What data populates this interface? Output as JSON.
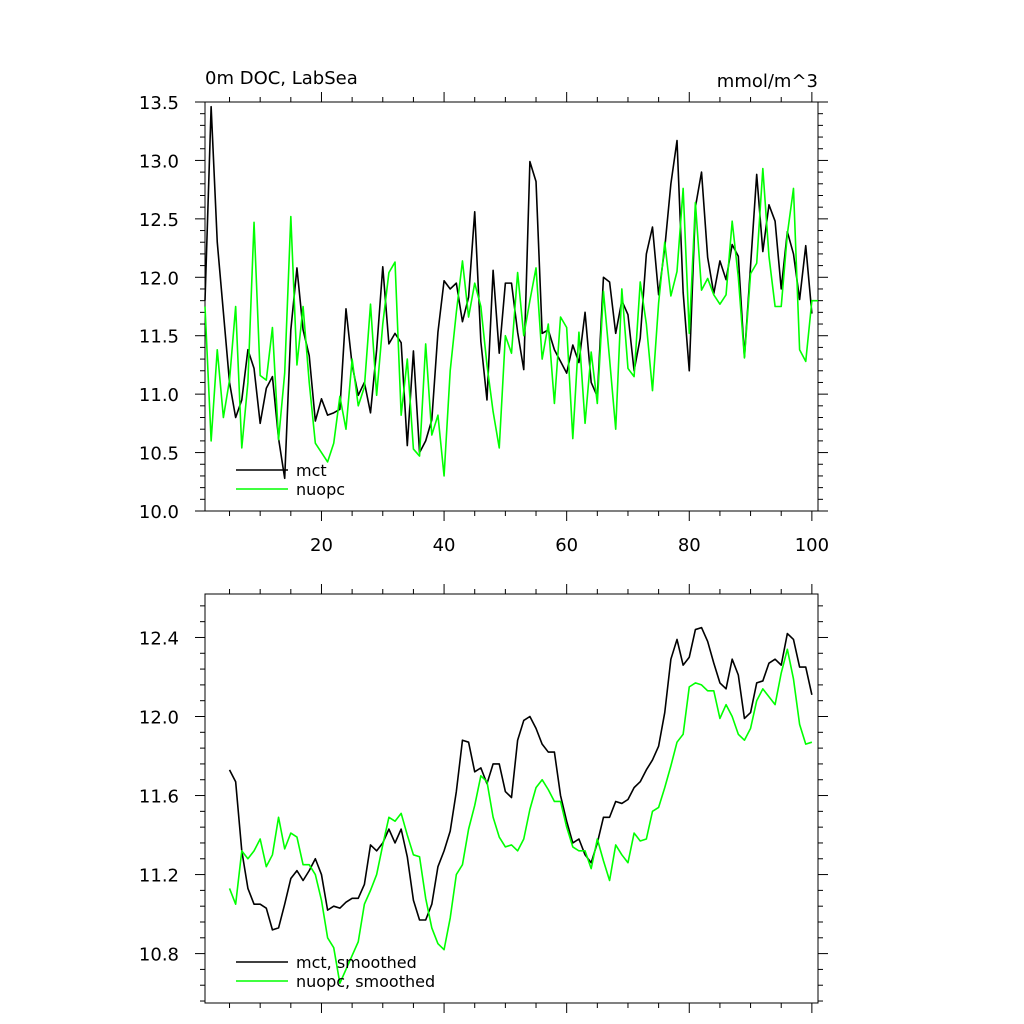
{
  "colors": {
    "mct": "#000000",
    "nuopc": "#00ff00"
  },
  "chart_data": [
    {
      "type": "line",
      "title": "0m DOC, LabSea",
      "units": "mmol/m^3",
      "xlim": [
        1,
        101
      ],
      "ylim": [
        10.0,
        13.5
      ],
      "xticks": [
        20,
        40,
        60,
        80,
        100
      ],
      "yticks": [
        10.0,
        10.5,
        11.0,
        11.5,
        12.0,
        12.5,
        13.0,
        13.5
      ],
      "xtick_labels": [
        "20",
        "40",
        "60",
        "80",
        "100"
      ],
      "ytick_labels": [
        "10.0",
        "10.5",
        "11.0",
        "11.5",
        "12.0",
        "12.5",
        "13.0",
        "13.5"
      ],
      "legend": "bottom-left",
      "series": [
        {
          "name": "mct",
          "color": "#000000",
          "x_start": 1,
          "values": [
            11.8,
            13.46,
            12.3,
            11.7,
            11.1,
            10.8,
            10.95,
            11.38,
            11.22,
            10.75,
            11.05,
            11.15,
            10.62,
            10.28,
            11.55,
            12.08,
            11.55,
            11.33,
            10.77,
            10.96,
            10.82,
            10.84,
            10.87,
            11.73,
            11.25,
            10.99,
            11.1,
            10.84,
            11.38,
            12.09,
            11.43,
            11.52,
            11.44,
            10.56,
            11.37,
            10.5,
            10.6,
            10.78,
            11.53,
            11.97,
            11.9,
            11.95,
            11.62,
            11.83,
            12.56,
            11.45,
            10.95,
            12.06,
            11.35,
            11.95,
            11.95,
            11.53,
            11.21,
            12.99,
            12.82,
            11.52,
            11.55,
            11.38,
            11.28,
            11.18,
            11.42,
            11.27,
            11.7,
            11.1,
            10.98,
            12.0,
            11.96,
            11.52,
            11.8,
            11.68,
            11.2,
            11.48,
            12.2,
            12.43,
            11.85,
            12.25,
            12.8,
            13.17,
            11.87,
            11.2,
            12.6,
            12.9,
            12.17,
            11.86,
            12.14,
            11.98,
            12.28,
            12.18,
            11.32,
            12.1,
            12.88,
            12.22,
            12.62,
            12.48,
            11.9,
            12.39,
            12.2,
            11.81,
            12.27,
            11.69
          ]
        },
        {
          "name": "nuopc",
          "color": "#00ff00",
          "x_start": 1,
          "values": [
            11.75,
            10.6,
            11.38,
            10.8,
            11.12,
            11.75,
            10.54,
            11.1,
            12.47,
            11.16,
            11.12,
            11.57,
            10.61,
            11.18,
            12.52,
            11.25,
            11.75,
            11.1,
            10.58,
            10.5,
            10.42,
            10.58,
            10.98,
            10.7,
            11.3,
            10.9,
            11.06,
            11.77,
            10.99,
            11.6,
            12.04,
            12.13,
            10.82,
            11.3,
            10.53,
            10.47,
            11.43,
            10.65,
            10.82,
            10.3,
            11.2,
            11.7,
            12.14,
            11.66,
            11.95,
            11.75,
            11.25,
            10.85,
            10.54,
            11.5,
            11.35,
            12.04,
            11.5,
            11.8,
            12.08,
            11.3,
            11.6,
            10.92,
            11.66,
            11.57,
            10.62,
            11.53,
            10.75,
            11.36,
            10.92,
            11.88,
            11.3,
            10.7,
            11.9,
            11.22,
            11.15,
            11.96,
            11.6,
            11.03,
            11.78,
            12.3,
            11.84,
            12.05,
            12.76,
            11.52,
            12.64,
            11.89,
            11.99,
            11.85,
            11.77,
            11.85,
            12.48,
            12.0,
            11.31,
            12.03,
            12.12,
            12.93,
            12.18,
            11.75,
            11.75,
            12.37,
            12.76,
            11.38,
            11.28,
            11.8,
            11.8
          ]
        }
      ]
    },
    {
      "type": "line",
      "title": "",
      "units": "",
      "xlim": [
        1,
        101
      ],
      "ylim": [
        10.55,
        12.62
      ],
      "xticks": [
        20,
        40,
        60,
        80,
        100
      ],
      "yticks": [
        10.8,
        11.2,
        11.6,
        12.0,
        12.4
      ],
      "ytick_labels": [
        "10.8",
        "11.2",
        "11.6",
        "12.0",
        "12.4"
      ],
      "legend": "bottom-left",
      "series": [
        {
          "name": "mct, smoothed",
          "color": "#000000",
          "x_start": 5,
          "values": [
            11.73,
            11.67,
            11.32,
            11.13,
            11.05,
            11.05,
            11.03,
            10.92,
            10.93,
            11.05,
            11.18,
            11.22,
            11.17,
            11.22,
            11.28,
            11.2,
            11.02,
            11.04,
            11.03,
            11.06,
            11.08,
            11.08,
            11.15,
            11.35,
            11.32,
            11.36,
            11.43,
            11.36,
            11.43,
            11.29,
            11.07,
            10.97,
            10.97,
            11.05,
            11.24,
            11.32,
            11.42,
            11.62,
            11.88,
            11.87,
            11.72,
            11.74,
            11.66,
            11.76,
            11.76,
            11.62,
            11.59,
            11.88,
            11.98,
            12.0,
            11.94,
            11.86,
            11.82,
            11.82,
            11.6,
            11.47,
            11.36,
            11.38,
            11.3,
            11.26,
            11.36,
            11.49,
            11.49,
            11.57,
            11.56,
            11.58,
            11.64,
            11.67,
            11.73,
            11.78,
            11.85,
            12.02,
            12.29,
            12.39,
            12.26,
            12.3,
            12.44,
            12.45,
            12.38,
            12.27,
            12.17,
            12.14,
            12.29,
            12.21,
            11.99,
            12.02,
            12.17,
            12.18,
            12.27,
            12.29,
            12.26,
            12.42,
            12.39,
            12.25,
            12.25,
            12.11
          ]
        },
        {
          "name": "nuopc, smoothed",
          "color": "#00ff00",
          "x_start": 5,
          "values": [
            11.13,
            11.05,
            11.32,
            11.28,
            11.32,
            11.38,
            11.24,
            11.3,
            11.49,
            11.33,
            11.41,
            11.39,
            11.25,
            11.25,
            11.2,
            11.07,
            10.88,
            10.83,
            10.65,
            10.72,
            10.79,
            10.86,
            11.05,
            11.12,
            11.2,
            11.35,
            11.49,
            11.47,
            11.51,
            11.4,
            11.3,
            11.29,
            11.08,
            10.93,
            10.85,
            10.82,
            10.98,
            11.2,
            11.25,
            11.43,
            11.55,
            11.7,
            11.67,
            11.49,
            11.39,
            11.34,
            11.35,
            11.32,
            11.38,
            11.53,
            11.64,
            11.68,
            11.63,
            11.57,
            11.57,
            11.44,
            11.34,
            11.32,
            11.32,
            11.23,
            11.38,
            11.27,
            11.17,
            11.35,
            11.3,
            11.26,
            11.41,
            11.37,
            11.38,
            11.52,
            11.54,
            11.64,
            11.75,
            11.87,
            11.91,
            12.15,
            12.17,
            12.16,
            12.13,
            12.13,
            11.99,
            12.06,
            12.0,
            11.91,
            11.88,
            11.94,
            12.08,
            12.14,
            12.1,
            12.06,
            12.22,
            12.34,
            12.19,
            11.96,
            11.86,
            11.87
          ]
        }
      ]
    }
  ]
}
